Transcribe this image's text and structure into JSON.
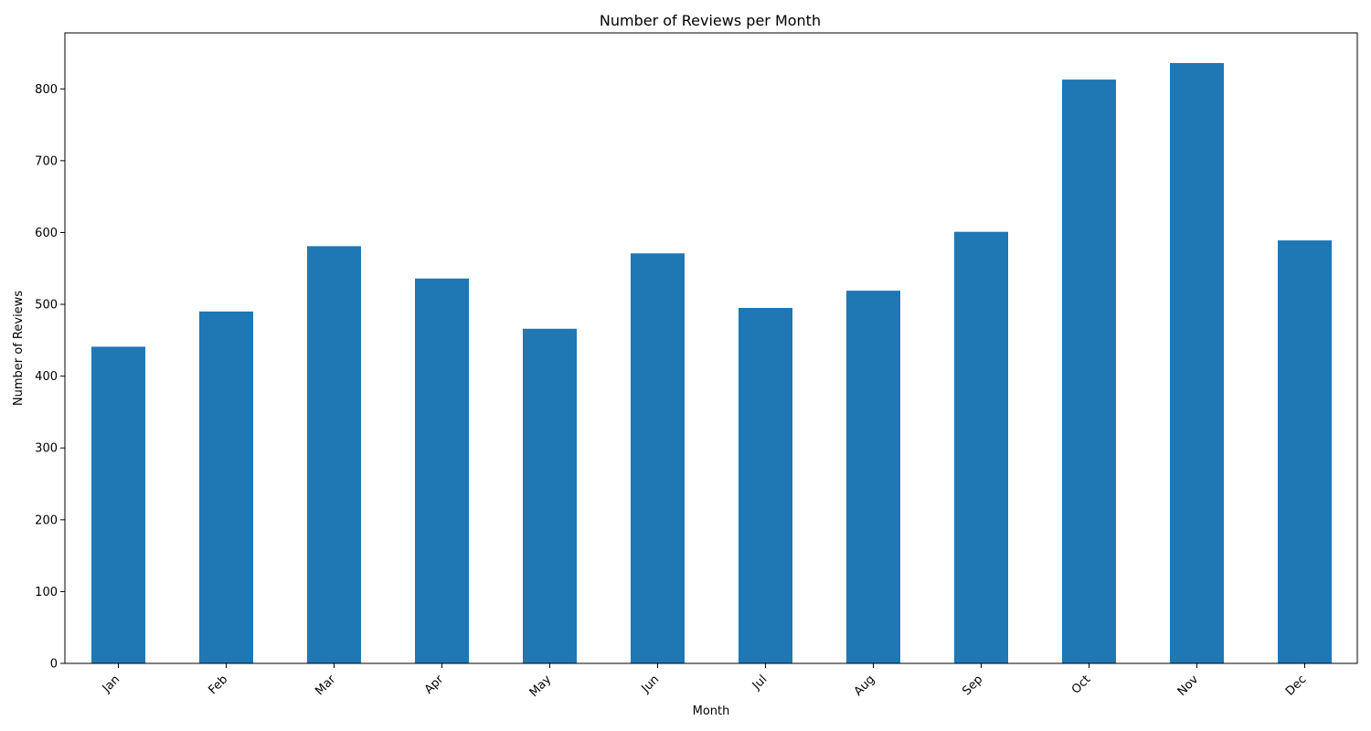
{
  "chart_data": {
    "type": "bar",
    "title": "Number of Reviews per Month",
    "xlabel": "Month",
    "ylabel": "Number of Reviews",
    "categories": [
      "Jan",
      "Feb",
      "Mar",
      "Apr",
      "May",
      "Jun",
      "Jul",
      "Aug",
      "Sep",
      "Oct",
      "Nov",
      "Dec"
    ],
    "values": [
      441,
      490,
      581,
      536,
      466,
      571,
      495,
      519,
      601,
      813,
      836,
      589
    ],
    "ylim": [
      0,
      878
    ],
    "yticks": [
      0,
      100,
      200,
      300,
      400,
      500,
      600,
      700,
      800
    ],
    "grid": false,
    "legend": "none",
    "bar_color": "#1f77b4"
  }
}
